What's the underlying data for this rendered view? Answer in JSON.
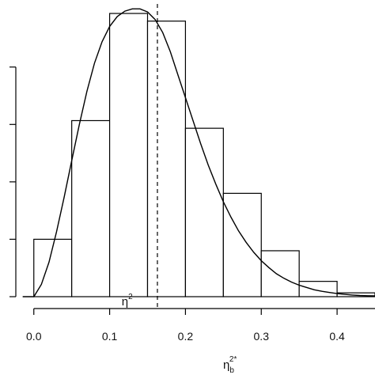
{
  "chart_data": {
    "type": "bar",
    "bin_edges": [
      0.0,
      0.05,
      0.1,
      0.15,
      0.2,
      0.25,
      0.3,
      0.35,
      0.4,
      0.45
    ],
    "values": [
      0.75,
      2.3,
      3.7,
      3.6,
      2.2,
      1.35,
      0.6,
      0.2,
      0.05
    ],
    "xlim": [
      -0.03,
      0.45
    ],
    "ylim": [
      0,
      3.7
    ],
    "x_ticks": [
      0.0,
      0.1,
      0.2,
      0.3,
      0.4
    ],
    "x_tick_labels": [
      "0.0",
      "0.1",
      "0.2",
      "0.3",
      "0.4"
    ],
    "y_tick_values": [
      0.0,
      0.75,
      1.5,
      2.25,
      3.0
    ],
    "grid": false,
    "density_curve": {
      "x": [
        0.0,
        0.01,
        0.02,
        0.03,
        0.04,
        0.05,
        0.06,
        0.07,
        0.08,
        0.09,
        0.1,
        0.11,
        0.12,
        0.13,
        0.14,
        0.15,
        0.16,
        0.17,
        0.18,
        0.19,
        0.2,
        0.21,
        0.22,
        0.23,
        0.24,
        0.25,
        0.26,
        0.27,
        0.28,
        0.29,
        0.3,
        0.31,
        0.32,
        0.33,
        0.34,
        0.35,
        0.36,
        0.37,
        0.38,
        0.39,
        0.4,
        0.41,
        0.42,
        0.43,
        0.44,
        0.45
      ],
      "y": [
        0.0,
        0.16,
        0.45,
        0.85,
        1.3,
        1.78,
        2.25,
        2.68,
        3.05,
        3.33,
        3.53,
        3.66,
        3.73,
        3.76,
        3.76,
        3.72,
        3.62,
        3.45,
        3.2,
        2.9,
        2.6,
        2.3,
        2.0,
        1.72,
        1.47,
        1.24,
        1.04,
        0.86,
        0.71,
        0.58,
        0.47,
        0.38,
        0.3,
        0.24,
        0.19,
        0.15,
        0.12,
        0.09,
        0.07,
        0.055,
        0.04,
        0.03,
        0.022,
        0.016,
        0.012,
        0.01
      ]
    },
    "reference_line": {
      "x": 0.163,
      "style": "dashed"
    },
    "marker_label": {
      "text": "η",
      "superscript": "2",
      "x": 0.12
    },
    "xlabel": {
      "text": "η",
      "subscript": "b",
      "superscript": "2*"
    }
  }
}
